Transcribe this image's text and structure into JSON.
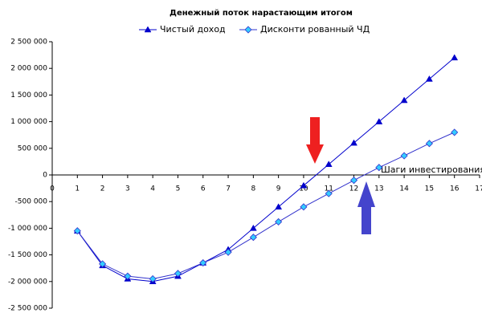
{
  "chart_data": {
    "type": "line",
    "title": "Денежный поток нарастающим итогом",
    "x_label": "Шаги инвестирования",
    "x": [
      1,
      2,
      3,
      4,
      5,
      6,
      7,
      8,
      9,
      10,
      11,
      12,
      13,
      14,
      15,
      16
    ],
    "series": [
      {
        "name": "Чистый доход",
        "color": "#0000cc",
        "marker": "triangle",
        "marker_color": "#0000cc",
        "values": [
          -1050000,
          -1700000,
          -1950000,
          -2000000,
          -1900000,
          -1650000,
          -1400000,
          -1000000,
          -600000,
          -200000,
          200000,
          600000,
          1000000,
          1400000,
          1800000,
          2200000
        ]
      },
      {
        "name": "Дисконти рованный ЧД",
        "color": "#3333cc",
        "marker": "diamond",
        "marker_color": "#33ccff",
        "values": [
          -1050000,
          -1670000,
          -1900000,
          -1950000,
          -1850000,
          -1650000,
          -1450000,
          -1170000,
          -880000,
          -600000,
          -350000,
          -100000,
          140000,
          360000,
          590000,
          800000
        ]
      }
    ],
    "xlim": [
      0,
      17
    ],
    "xticks": [
      0,
      1,
      2,
      3,
      4,
      5,
      6,
      7,
      8,
      9,
      10,
      11,
      12,
      13,
      14,
      15,
      16,
      17
    ],
    "ylim": [
      -2500000,
      2500000
    ],
    "yticks": [
      {
        "value": -2500000,
        "label": "-2 500 000"
      },
      {
        "value": -2000000,
        "label": "-2 000 000"
      },
      {
        "value": -1500000,
        "label": "-1 500 000"
      },
      {
        "value": -1000000,
        "label": "-1 000 000"
      },
      {
        "value": -500000,
        "label": "-500 000"
      },
      0,
      {
        "value": 500000,
        "label": "500 000"
      },
      {
        "value": 1000000,
        "label": "1 000 000"
      },
      {
        "value": 1500000,
        "label": "1 500 000"
      },
      {
        "value": 2000000,
        "label": "2 000 000"
      },
      {
        "value": 2500000,
        "label": "2 500 000"
      }
    ],
    "grid": false,
    "legend": "top"
  }
}
